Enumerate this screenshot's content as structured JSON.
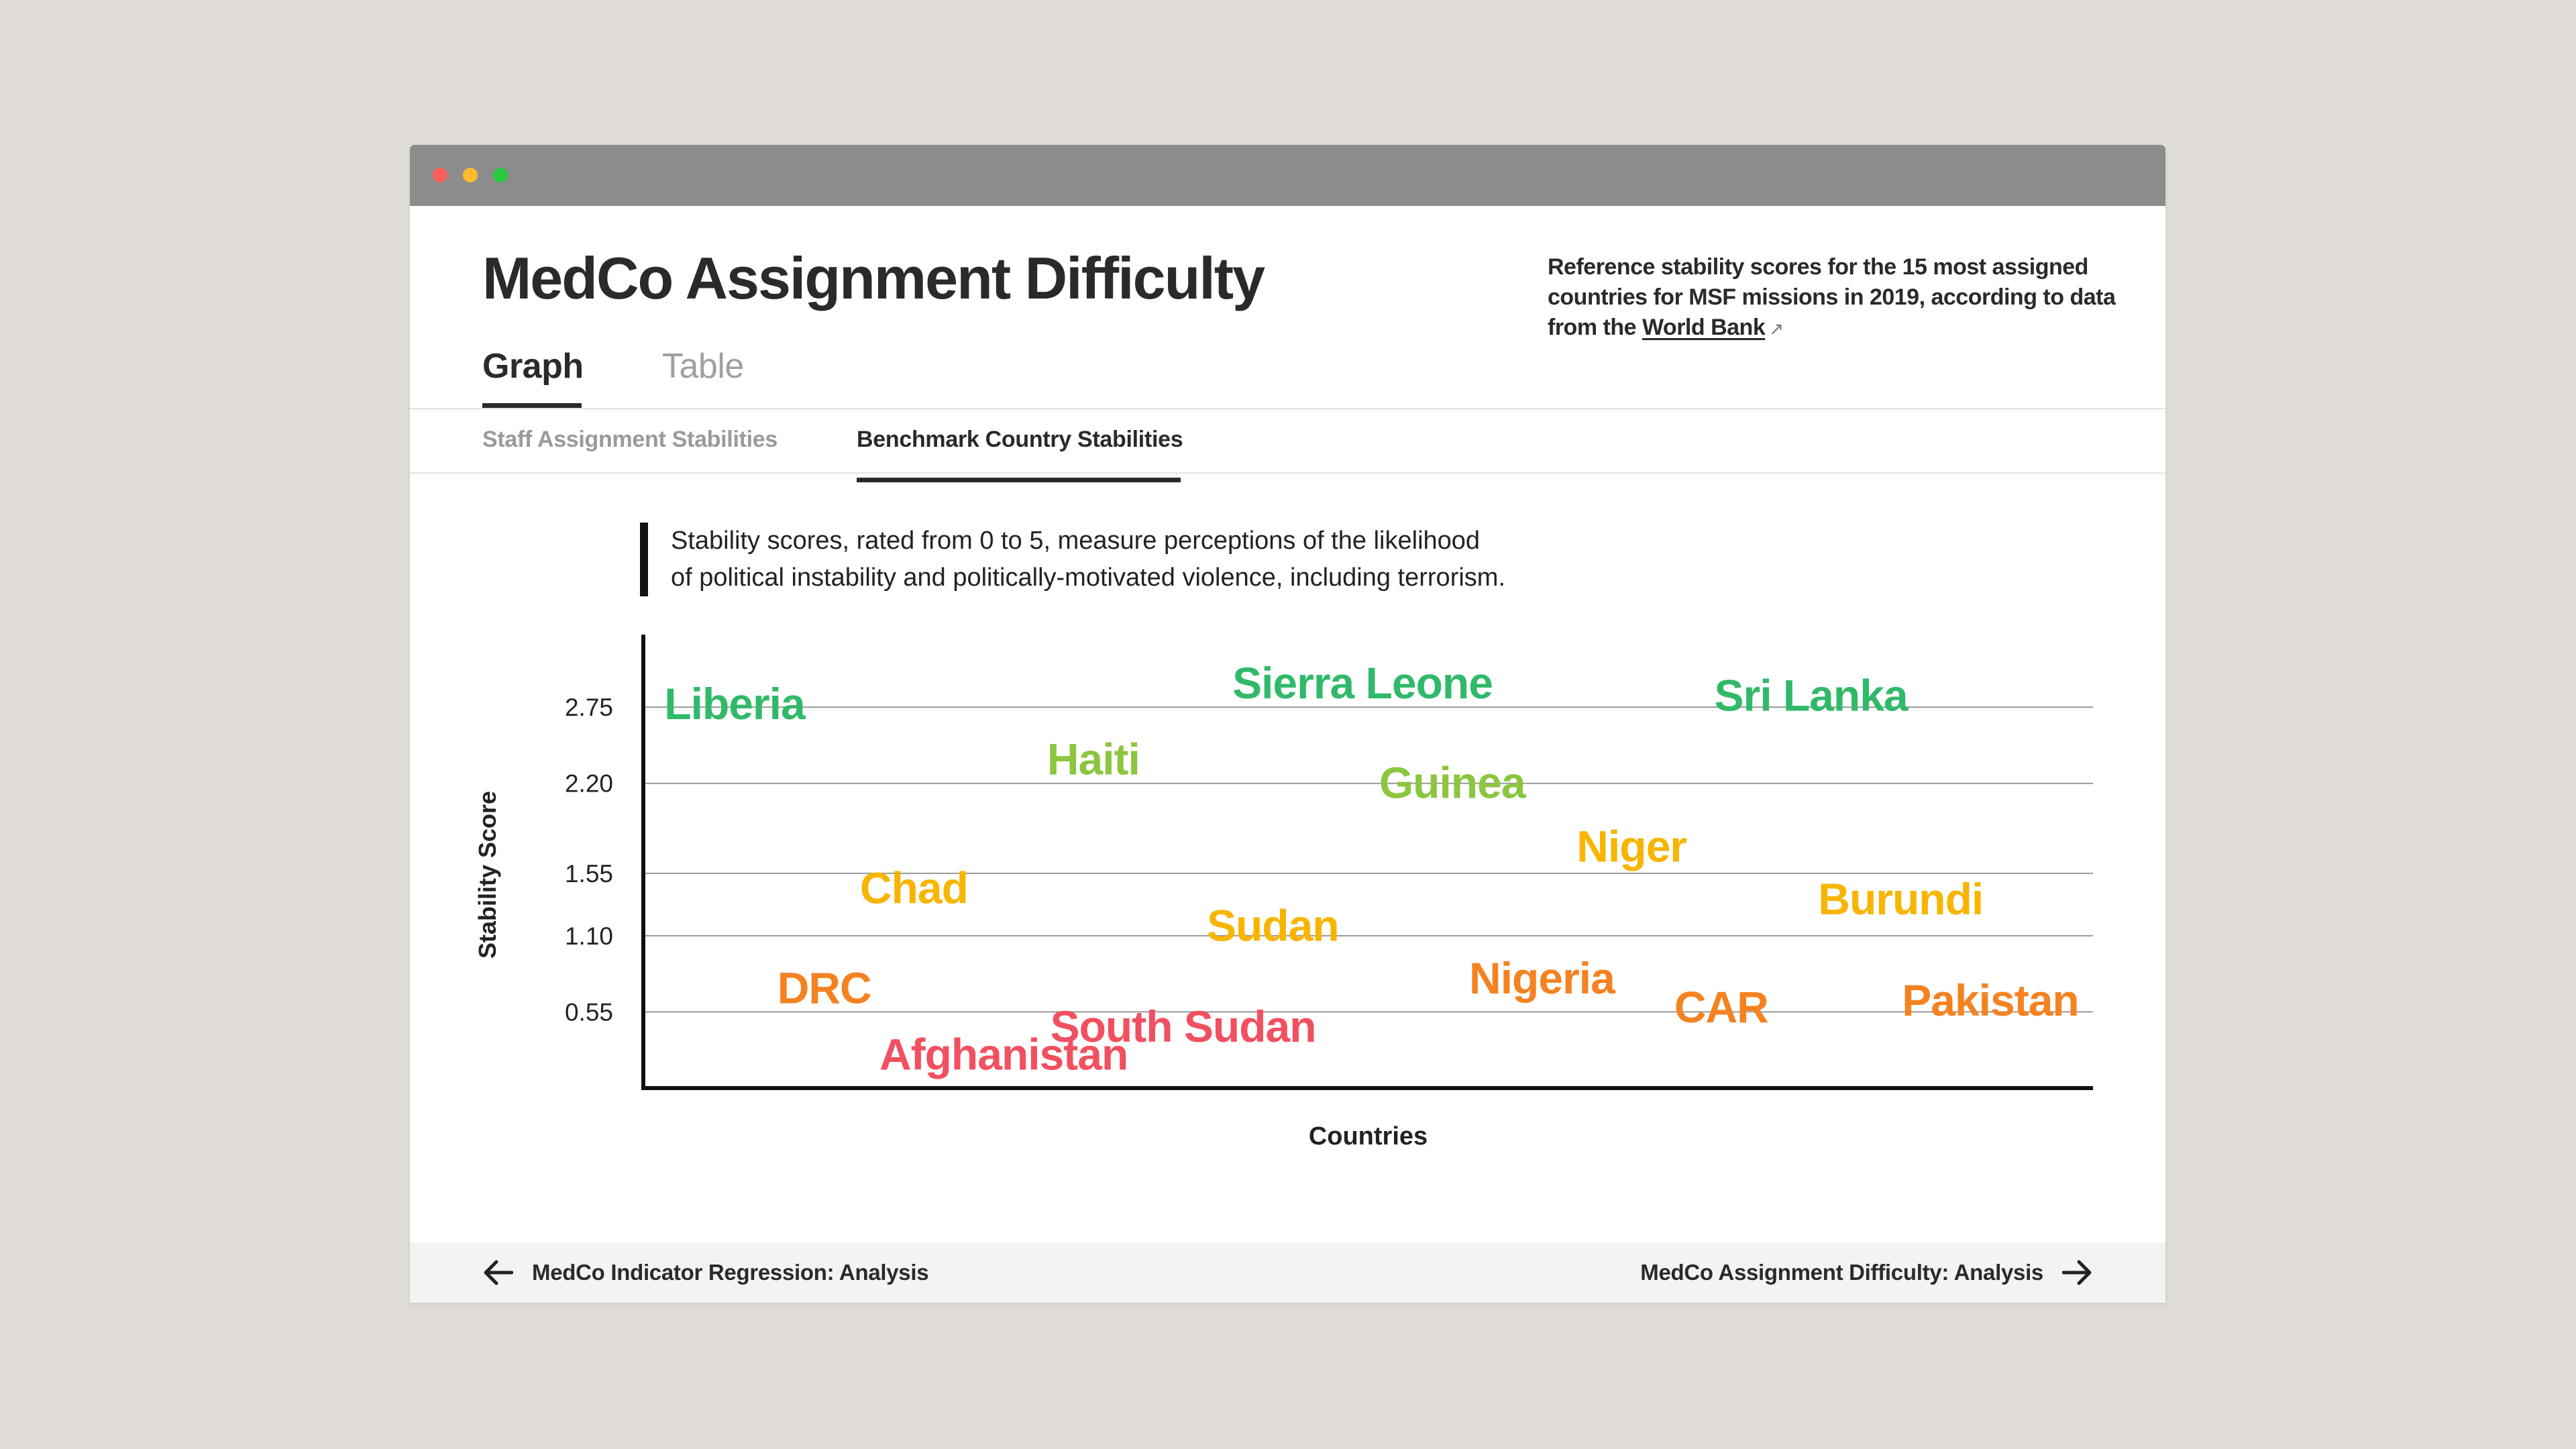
{
  "window": {
    "controls": [
      {
        "name": "close",
        "color": "#fc5f57"
      },
      {
        "name": "minimize",
        "color": "#fdbc2e"
      },
      {
        "name": "zoom",
        "color": "#28c840"
      }
    ]
  },
  "header": {
    "title": "MedCo Assignment Difficulty",
    "description_text": "Reference stability scores for the 15 most assigned countries for MSF missions in 2019, according to data from the",
    "description_link": "World Bank",
    "link_icon": "external-arrow-icon"
  },
  "tabs": [
    {
      "label": "Graph",
      "active": true
    },
    {
      "label": "Table",
      "active": false
    }
  ],
  "subtabs": [
    {
      "label": "Staff Assignment Stabilities",
      "active": false
    },
    {
      "label": "Benchmark Country Stabilities",
      "active": true
    }
  ],
  "note": {
    "line1": "Stability scores, rated from 0 to 5, measure perceptions of the likelihood",
    "line2": "of political instability and politically-motivated violence, including terrorism."
  },
  "chart_data": {
    "type": "scatter",
    "xlabel": "Countries",
    "ylabel": "Stability Score",
    "ylim": [
      0,
      3.08
    ],
    "y_ticks": [
      0.55,
      1.1,
      1.55,
      2.2,
      2.75
    ],
    "y_tick_labels": [
      "0.55",
      "1.10",
      "1.55",
      "2.20",
      "2.75"
    ],
    "grid": true,
    "colors": {
      "dark_green": "#31b96a",
      "light_green": "#8cc63f",
      "yellow": "#f7b500",
      "orange": "#f58220",
      "red": "#f15060"
    },
    "points": [
      {
        "label": "Liberia",
        "x": 1,
        "y": 2.78,
        "color": "#31b96a"
      },
      {
        "label": "DRC",
        "x": 2,
        "y": 0.73,
        "color": "#f58220"
      },
      {
        "label": "Chad",
        "x": 3,
        "y": 1.45,
        "color": "#f7b500"
      },
      {
        "label": "Afghanistan",
        "x": 4,
        "y": 0.25,
        "color": "#f15060"
      },
      {
        "label": "Haiti",
        "x": 5,
        "y": 2.38,
        "color": "#8cc63f"
      },
      {
        "label": "South Sudan",
        "x": 6,
        "y": 0.45,
        "color": "#f15060"
      },
      {
        "label": "Sudan",
        "x": 7,
        "y": 1.18,
        "color": "#f7b500"
      },
      {
        "label": "Sierra Leone",
        "x": 8,
        "y": 2.93,
        "color": "#31b96a"
      },
      {
        "label": "Guinea",
        "x": 9,
        "y": 2.21,
        "color": "#8cc63f"
      },
      {
        "label": "Nigeria",
        "x": 10,
        "y": 0.8,
        "color": "#f58220"
      },
      {
        "label": "Niger",
        "x": 11,
        "y": 1.75,
        "color": "#f7b500"
      },
      {
        "label": "CAR",
        "x": 12,
        "y": 0.59,
        "color": "#f58220"
      },
      {
        "label": "Sri Lanka",
        "x": 13,
        "y": 2.84,
        "color": "#31b96a"
      },
      {
        "label": "Burundi",
        "x": 14,
        "y": 1.37,
        "color": "#f7b500"
      },
      {
        "label": "Pakistan",
        "x": 15,
        "y": 0.64,
        "color": "#f58220"
      }
    ]
  },
  "footer": {
    "prev_label": "MedCo Indicator Regression: Analysis",
    "prev_icon": "arrow-left-icon",
    "next_label": "MedCo Assignment Difficulty: Analysis",
    "next_icon": "arrow-right-icon"
  }
}
